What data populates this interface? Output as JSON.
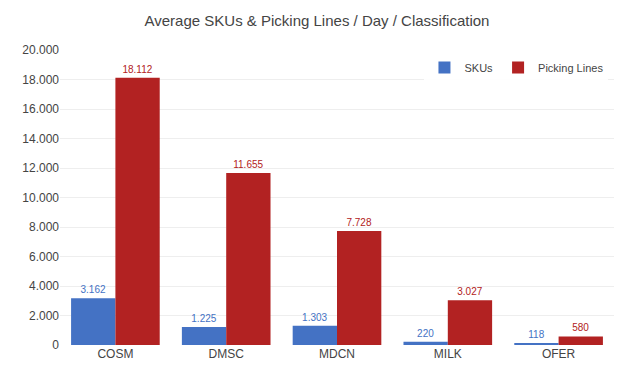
{
  "chart_data": {
    "type": "bar",
    "title": "Average SKUs & Picking Lines / Day / Classification",
    "categories": [
      "COSM",
      "DMSC",
      "MDCN",
      "MILK",
      "OFER"
    ],
    "series": [
      {
        "name": "SKUs",
        "color": "#4472C4",
        "values": [
          3162,
          1225,
          1303,
          220,
          118
        ],
        "value_labels": [
          "3.162",
          "1.225",
          "1.303",
          "220",
          "118"
        ]
      },
      {
        "name": "Picking Lines",
        "color": "#B22222",
        "values": [
          18112,
          11655,
          7728,
          3027,
          580
        ],
        "value_labels": [
          "18.112",
          "11.655",
          "7.728",
          "3.027",
          "580"
        ]
      }
    ],
    "ylim": [
      0,
      20000
    ],
    "yticks": [
      0,
      {
        "value": 2000,
        "label": "2.000"
      },
      {
        "value": 4000,
        "label": "4.000"
      },
      {
        "value": 6000,
        "label": "6.000"
      },
      {
        "value": 8000,
        "label": "8.000"
      },
      {
        "value": 10000,
        "label": "10.000"
      },
      {
        "value": 12000,
        "label": "12.000"
      },
      {
        "value": 14000,
        "label": "14.000"
      },
      {
        "value": 16000,
        "label": "16.000"
      },
      {
        "value": 18000,
        "label": "18.000"
      },
      {
        "value": 20000,
        "label": "20.000"
      }
    ],
    "grid": true,
    "legend": "upper right",
    "data_labels": true
  }
}
